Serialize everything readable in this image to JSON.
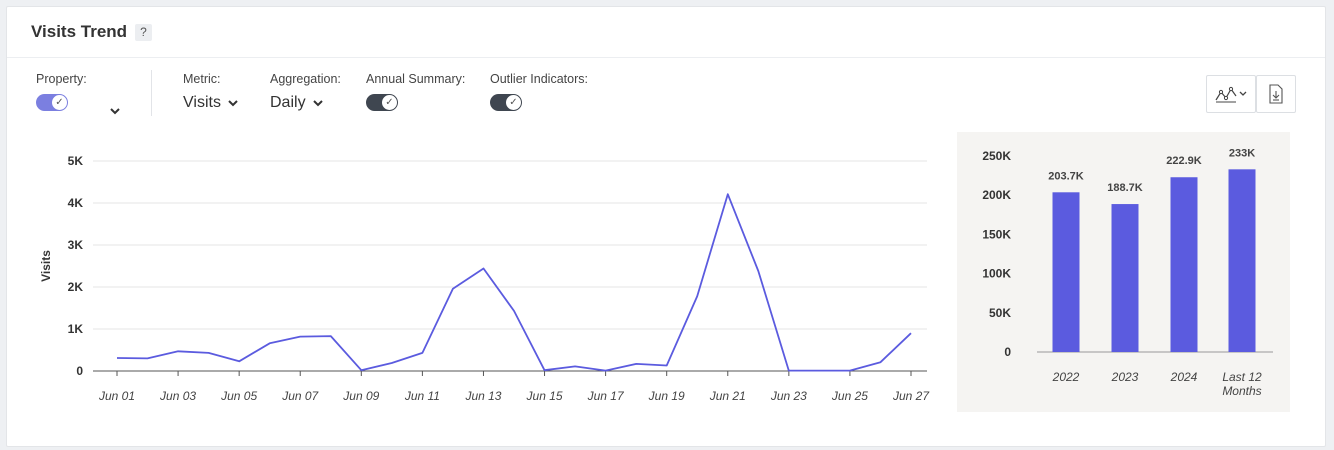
{
  "header": {
    "title": "Visits Trend",
    "help_label": "?"
  },
  "controls": {
    "property": {
      "label": "Property:",
      "toggle_on": true
    },
    "metric": {
      "label": "Metric:",
      "value": "Visits"
    },
    "aggregation": {
      "label": "Aggregation:",
      "value": "Daily"
    },
    "annual_summary": {
      "label": "Annual Summary:",
      "toggle_on": true
    },
    "outlier_indicators": {
      "label": "Outlier Indicators:",
      "toggle_on": true
    }
  },
  "toolbar": {
    "chart_type_icon": "line-chart-icon",
    "download_icon": "download-icon"
  },
  "colors": {
    "accent": "#5b5bdf",
    "toggle_property": "#7b7fe0",
    "toggle_dark": "#3f4650",
    "grid": "#e6e6e6"
  },
  "chart_data": [
    {
      "type": "line",
      "ylabel": "Visits",
      "xlabel": "",
      "ylim": [
        0,
        5000
      ],
      "yticks": [
        0,
        1000,
        2000,
        3000,
        4000,
        5000
      ],
      "ytick_labels": [
        "0",
        "1K",
        "2K",
        "3K",
        "4K",
        "5K"
      ],
      "xtick_labels": [
        "Jun 01",
        "Jun 03",
        "Jun 05",
        "Jun 07",
        "Jun 09",
        "Jun 11",
        "Jun 13",
        "Jun 15",
        "Jun 17",
        "Jun 19",
        "Jun 21",
        "Jun 23",
        "Jun 25",
        "Jun 27"
      ],
      "x": [
        "Jun 01",
        "Jun 02",
        "Jun 03",
        "Jun 04",
        "Jun 05",
        "Jun 06",
        "Jun 07",
        "Jun 08",
        "Jun 09",
        "Jun 10",
        "Jun 11",
        "Jun 12",
        "Jun 13",
        "Jun 14",
        "Jun 15",
        "Jun 16",
        "Jun 17",
        "Jun 18",
        "Jun 19",
        "Jun 20",
        "Jun 21",
        "Jun 22",
        "Jun 23",
        "Jun 24",
        "Jun 25",
        "Jun 26",
        "Jun 27"
      ],
      "series": [
        {
          "values": [
            310,
            300,
            470,
            430,
            230,
            660,
            820,
            830,
            20,
            190,
            430,
            1960,
            2440,
            1430,
            20,
            110,
            10,
            170,
            130,
            1780,
            4210,
            2380,
            10,
            10,
            10,
            210,
            900
          ]
        }
      ],
      "grid": true
    },
    {
      "type": "bar",
      "categories": [
        "2022",
        "2023",
        "2024",
        "Last 12 Months"
      ],
      "values": [
        203.7,
        188.7,
        222.9,
        233
      ],
      "data_labels": [
        "203.7K",
        "188.7K",
        "222.9K",
        "233K"
      ],
      "ylim": [
        0,
        250
      ],
      "yticks": [
        0,
        50,
        100,
        150,
        200,
        250
      ],
      "ytick_labels": [
        "0",
        "50K",
        "100K",
        "150K",
        "200K",
        "250K"
      ],
      "grid": false
    }
  ]
}
